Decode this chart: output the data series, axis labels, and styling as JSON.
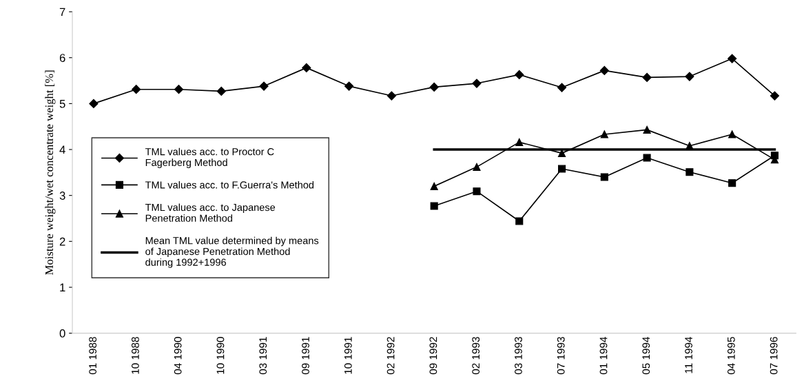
{
  "chart_data": {
    "type": "line",
    "ylabel": "Moisture weight/wet concentrate weight [%]",
    "categories": [
      "01 1988",
      "10 1988",
      "04 1990",
      "10 1990",
      "03 1991",
      "09 1991",
      "10 1991",
      "02 1992",
      "09 1992",
      "02 1993",
      "03 1993",
      "07 1993",
      "01 1994",
      "05 1994",
      "11 1994",
      "04 1995",
      "07 1996"
    ],
    "series": [
      {
        "name": "TML values acc. to Proctor C\nFagerberg Method",
        "color": "#000000",
        "marker": "diamond",
        "values": [
          5.0,
          5.31,
          5.31,
          5.27,
          5.38,
          5.78,
          5.38,
          5.17,
          5.36,
          5.44,
          5.63,
          5.35,
          5.72,
          5.57,
          5.59,
          5.98,
          5.17
        ]
      },
      {
        "name": "TML values acc. to F.Guerra's Method",
        "color": "#000000",
        "marker": "square",
        "values": [
          null,
          null,
          null,
          null,
          null,
          null,
          null,
          null,
          2.77,
          3.09,
          2.44,
          3.58,
          3.4,
          3.82,
          3.51,
          3.27,
          3.87
        ]
      },
      {
        "name": "TML values acc. to Japanese\nPenetration Method",
        "color": "#000000",
        "marker": "triangle",
        "values": [
          null,
          null,
          null,
          null,
          null,
          null,
          null,
          null,
          3.2,
          3.62,
          4.16,
          3.92,
          4.33,
          4.43,
          4.08,
          4.33,
          3.78
        ]
      },
      {
        "name": "Mean TML value determined by means\nof Japanese Penetration Method\nduring 1992+1996",
        "color": "#000000",
        "marker": "none",
        "values": [
          null,
          null,
          null,
          null,
          null,
          null,
          null,
          null,
          4.0,
          4.0,
          4.0,
          4.0,
          4.0,
          4.0,
          4.0,
          4.0,
          4.0
        ]
      }
    ],
    "ylim": [
      0,
      7
    ],
    "yticks": [
      0,
      1,
      2,
      3,
      4,
      5,
      6,
      7
    ],
    "grid": false,
    "legend": "left"
  }
}
